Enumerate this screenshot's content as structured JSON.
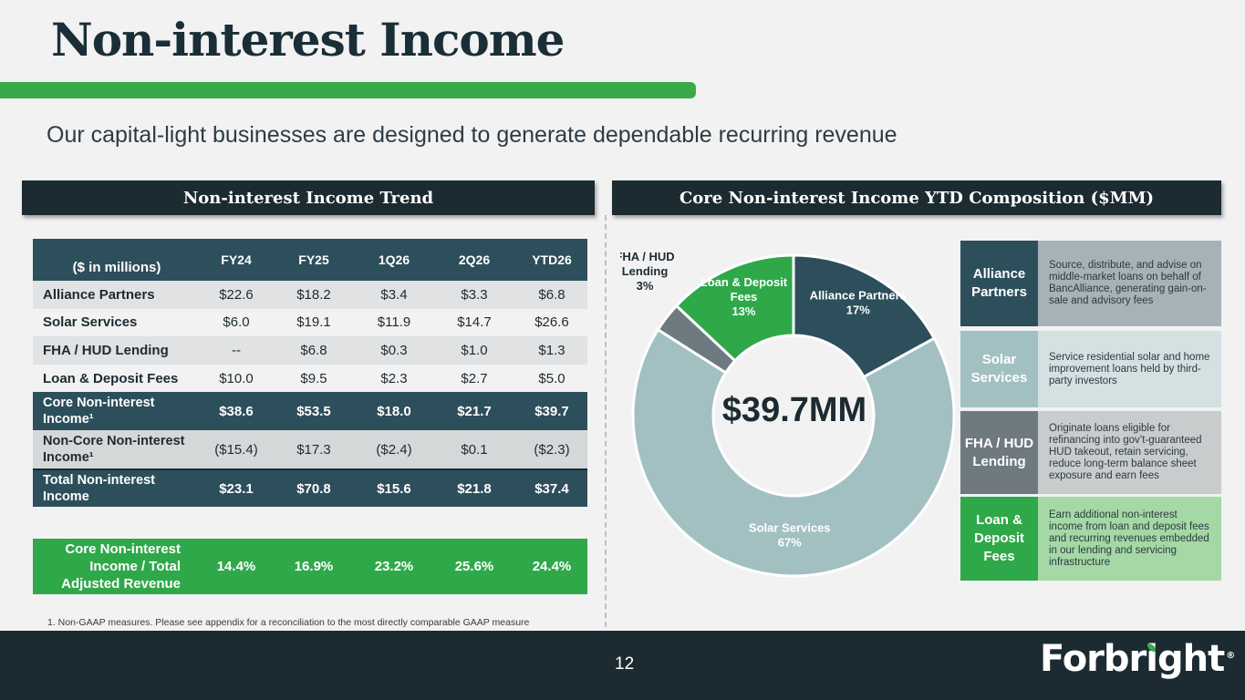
{
  "page": {
    "title": "Non-interest Income",
    "subtitle": "Our capital-light businesses are designed to generate dependable recurring revenue",
    "page_number": "12",
    "logo_text": "Forbright",
    "logo_mark": "®"
  },
  "trend": {
    "header": "Non-interest Income Trend",
    "columns": [
      "($ in millions)",
      "FY24",
      "FY25",
      "1Q26",
      "2Q26",
      "YTD26"
    ],
    "rows": [
      {
        "label": "Alliance Partners",
        "values": [
          "$22.6",
          "$18.2",
          "$3.4",
          "$3.3",
          "$6.8"
        ]
      },
      {
        "label": "Solar Services",
        "values": [
          "$6.0",
          "$19.1",
          "$11.9",
          "$14.7",
          "$26.6"
        ]
      },
      {
        "label": "FHA / HUD Lending",
        "values": [
          "--",
          "$6.8",
          "$0.3",
          "$1.0",
          "$1.3"
        ]
      },
      {
        "label": "Loan & Deposit Fees",
        "values": [
          "$10.0",
          "$9.5",
          "$2.3",
          "$2.7",
          "$5.0"
        ]
      },
      {
        "label": "Core Non-interest Income¹",
        "values": [
          "$38.6",
          "$53.5",
          "$18.0",
          "$21.7",
          "$39.7"
        ]
      },
      {
        "label": "Non-Core Non-interest Income¹",
        "values": [
          "($15.4)",
          "$17.3",
          "($2.4)",
          "$0.1",
          "($2.3)"
        ]
      },
      {
        "label": "Total Non-interest Income",
        "values": [
          "$23.1",
          "$70.8",
          "$15.6",
          "$21.8",
          "$37.4"
        ]
      }
    ],
    "ratio": {
      "label": "Core Non-interest Income / Total Adjusted Revenue",
      "values": [
        "14.4%",
        "16.9%",
        "23.2%",
        "25.6%",
        "24.4%"
      ]
    },
    "footnote": "1.     Non-GAAP measures. Please see appendix for a reconciliation to the most directly comparable GAAP measure"
  },
  "composition": {
    "header": "Core Non-interest Income YTD Composition ($MM)",
    "center_label": "$39.7MM",
    "legend": [
      {
        "name": "Alliance Partners",
        "desc": "Source, distribute, and advise on middle-market loans on behalf of BancAlliance, generating gain-on-sale and advisory fees"
      },
      {
        "name": "Solar Services",
        "desc": "Service residential solar and home improvement loans held by third-party investors"
      },
      {
        "name": "FHA / HUD Lending",
        "desc": "Originate loans eligible for refinancing into gov’t-guaranteed HUD takeout, retain servicing, reduce long-term balance sheet exposure and earn fees"
      },
      {
        "name": "Loan & Deposit Fees",
        "desc": "Earn additional non-interest income from loan and deposit fees and recurring revenues embedded in our lending and servicing infrastructure"
      }
    ]
  },
  "chart_data": {
    "type": "pie",
    "title": "Core Non-interest Income YTD Composition ($MM)",
    "center_label": "$39.7MM",
    "slices": [
      {
        "name": "Alliance Partners",
        "value": 17,
        "label": "Alliance Partners",
        "pct": "17%",
        "color": "#2d4f5c"
      },
      {
        "name": "Solar Services",
        "value": 67,
        "label": "Solar Services",
        "pct": "67%",
        "color": "#a2c0c2"
      },
      {
        "name": "FHA / HUD Lending",
        "value": 3,
        "label": "FHA / HUD Lending",
        "pct": "3%",
        "color": "#6e7a7f"
      },
      {
        "name": "Loan & Deposit Fees",
        "value": 13,
        "label": "Loan & Deposit Fees",
        "pct": "13%",
        "color": "#2fa84a"
      }
    ]
  }
}
